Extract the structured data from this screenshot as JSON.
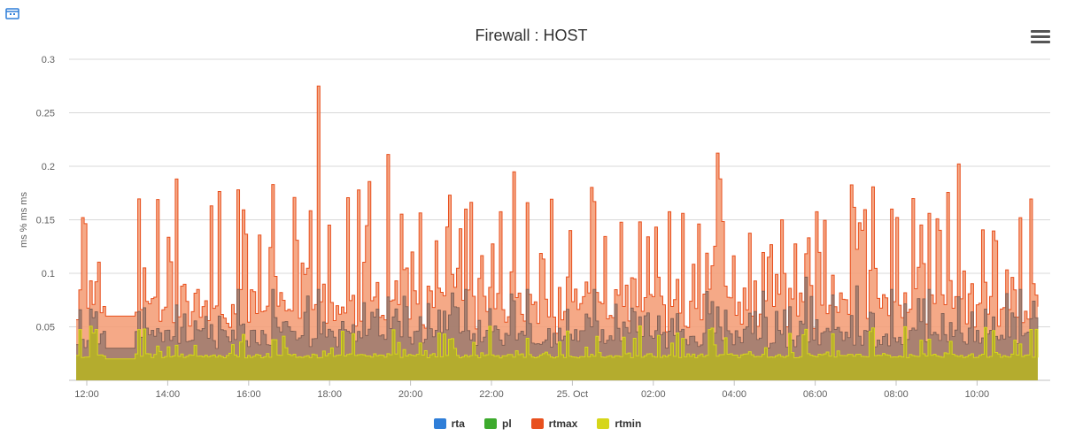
{
  "chart_data": {
    "type": "area",
    "title": "Firewall : HOST",
    "ylabel": "ms % ms ms",
    "ylim": [
      0,
      0.3
    ],
    "y_ticks": [
      "0.05",
      "0.1",
      "0.15",
      "0.2",
      "0.25",
      "0.3"
    ],
    "x_ticks": [
      "12:00",
      "14:00",
      "16:00",
      "18:00",
      "20:00",
      "22:00",
      "25. Oct",
      "02:00",
      "04:00",
      "06:00",
      "08:00",
      "10:00"
    ],
    "x_start": "11:45",
    "x_end": "11:35 (25. Oct)",
    "grid": true,
    "legend_position": "bottom-center",
    "series": [
      {
        "name": "rta",
        "color": "#2f7ed8",
        "approx_range": [
          0.02,
          0.09
        ],
        "typical": 0.035
      },
      {
        "name": "pl",
        "color": "#3daa2d",
        "approx_range": [
          0,
          0
        ],
        "typical": 0
      },
      {
        "name": "rtmax",
        "color": "#e8501e",
        "approx_range": [
          0.04,
          0.275
        ],
        "typical": 0.06,
        "peak": 0.275
      },
      {
        "name": "rtmin",
        "color": "#d6d61a",
        "approx_range": [
          0.02,
          0.07
        ],
        "typical": 0.022
      }
    ]
  },
  "ui": {
    "corner_icon": "calendar-icon",
    "menu_icon": "hamburger-menu-icon"
  }
}
